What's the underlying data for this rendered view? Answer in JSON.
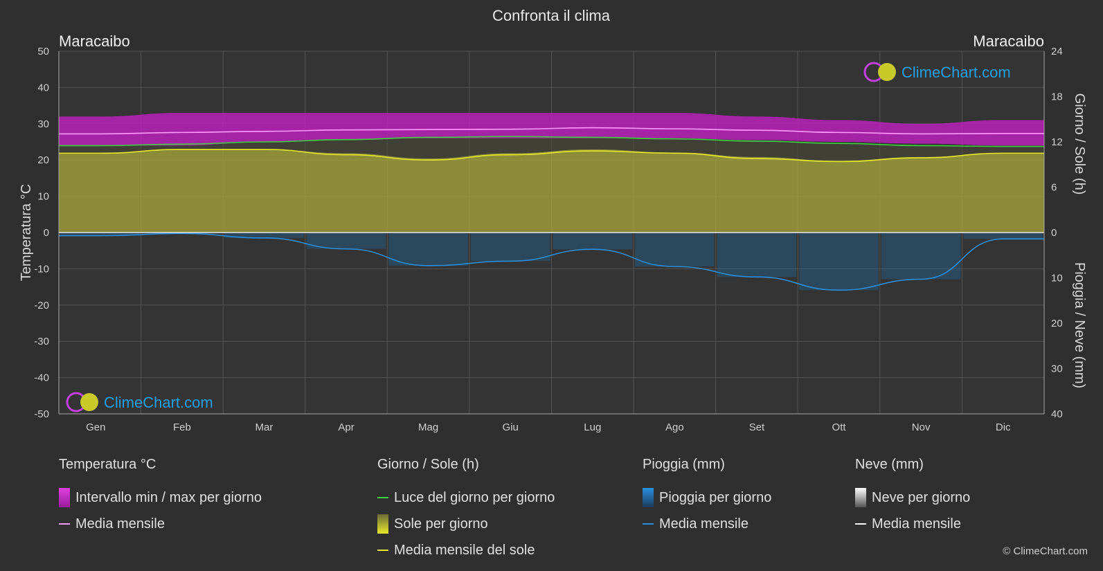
{
  "title": "Confronta il clima",
  "location_left": "Maracaibo",
  "location_right": "Maracaibo",
  "brand": "ClimeChart.com",
  "copyright": "© ClimeChart.com",
  "colors": {
    "background": "#2f2f2f",
    "temp_band": "#c21fc2",
    "temp_line": "#ff9cff",
    "daylight_line": "#3fd33f",
    "sun_band": "#a8a83a",
    "sun_line": "#e8e82a",
    "rain_bar": "#1f6fa8",
    "rain_line": "#2a8fe0",
    "snow_line": "#ffffff",
    "brand_text": "#1ea0e6"
  },
  "legend": {
    "temperature": {
      "header": "Temperatura °C",
      "items": [
        "Intervallo min / max per giorno",
        "Media mensile"
      ]
    },
    "daysun": {
      "header": "Giorno / Sole (h)",
      "items": [
        "Luce del giorno per giorno",
        "Sole per giorno",
        "Media mensile del sole"
      ]
    },
    "rain": {
      "header": "Pioggia (mm)",
      "items": [
        "Pioggia per giorno",
        "Media mensile"
      ]
    },
    "snow": {
      "header": "Neve (mm)",
      "items": [
        "Neve per giorno",
        "Media mensile"
      ]
    }
  },
  "chart_data": {
    "type": "area",
    "categories": [
      "Gen",
      "Feb",
      "Mar",
      "Apr",
      "Mag",
      "Giu",
      "Lug",
      "Ago",
      "Set",
      "Ott",
      "Nov",
      "Dic"
    ],
    "axes": {
      "left": {
        "label": "Temperatura °C",
        "range": [
          -50,
          50
        ],
        "ticks": [
          50,
          40,
          30,
          20,
          10,
          0,
          -10,
          -20,
          -30,
          -40,
          -50
        ]
      },
      "right_top": {
        "label": "Giorno / Sole (h)",
        "range": [
          0,
          24
        ],
        "ticks": [
          24,
          18,
          12,
          6,
          0
        ]
      },
      "right_bottom": {
        "label": "Pioggia / Neve (mm)",
        "range": [
          0,
          40
        ],
        "ticks": [
          0,
          10,
          20,
          30,
          40
        ]
      }
    },
    "grid": true,
    "series": [
      {
        "name": "Intervallo min / max per giorno",
        "axis": "left",
        "kind": "band",
        "low": [
          24,
          24,
          25,
          25.5,
          26,
          26,
          26,
          26,
          25.5,
          25,
          24.5,
          24
        ],
        "high": [
          32,
          33,
          33,
          33,
          33,
          33,
          33,
          33,
          32,
          31,
          30,
          31
        ]
      },
      {
        "name": "Media mensile",
        "axis": "left",
        "kind": "line",
        "color_key": "temp_line",
        "values": [
          27.2,
          27.6,
          27.9,
          28.3,
          28.4,
          28.5,
          28.9,
          28.6,
          28.2,
          27.6,
          27.2,
          27.3
        ]
      },
      {
        "name": "Luce del giorno per giorno",
        "axis": "right_top",
        "kind": "line",
        "color_key": "daylight_line",
        "values": [
          11.5,
          11.7,
          12.0,
          12.3,
          12.6,
          12.7,
          12.6,
          12.4,
          12.1,
          11.8,
          11.5,
          11.4
        ]
      },
      {
        "name": "Sole per giorno",
        "axis": "right_top",
        "kind": "area",
        "values": [
          10.5,
          11.0,
          11.0,
          10.5,
          9.8,
          10.5,
          11.0,
          10.6,
          10.0,
          9.5,
          10.0,
          10.5
        ]
      },
      {
        "name": "Media mensile del sole",
        "axis": "right_top",
        "kind": "line",
        "color_key": "sun_line",
        "values": [
          10.5,
          11.0,
          11.0,
          10.3,
          9.6,
          10.3,
          10.8,
          10.5,
          9.8,
          9.4,
          9.9,
          10.5
        ]
      },
      {
        "name": "Pioggia per giorno",
        "axis": "right_bottom",
        "kind": "bars",
        "values": [
          0.7,
          0.2,
          1.2,
          3.6,
          7.3,
          6.3,
          3.7,
          7.5,
          9.8,
          12.7,
          10.3,
          1.4
        ]
      },
      {
        "name": "Media mensile",
        "axis": "right_bottom",
        "kind": "line",
        "color_key": "rain_line",
        "values": [
          0.7,
          0.2,
          1.2,
          3.6,
          7.3,
          6.3,
          3.7,
          7.5,
          9.8,
          12.7,
          10.3,
          1.4
        ]
      }
    ]
  }
}
